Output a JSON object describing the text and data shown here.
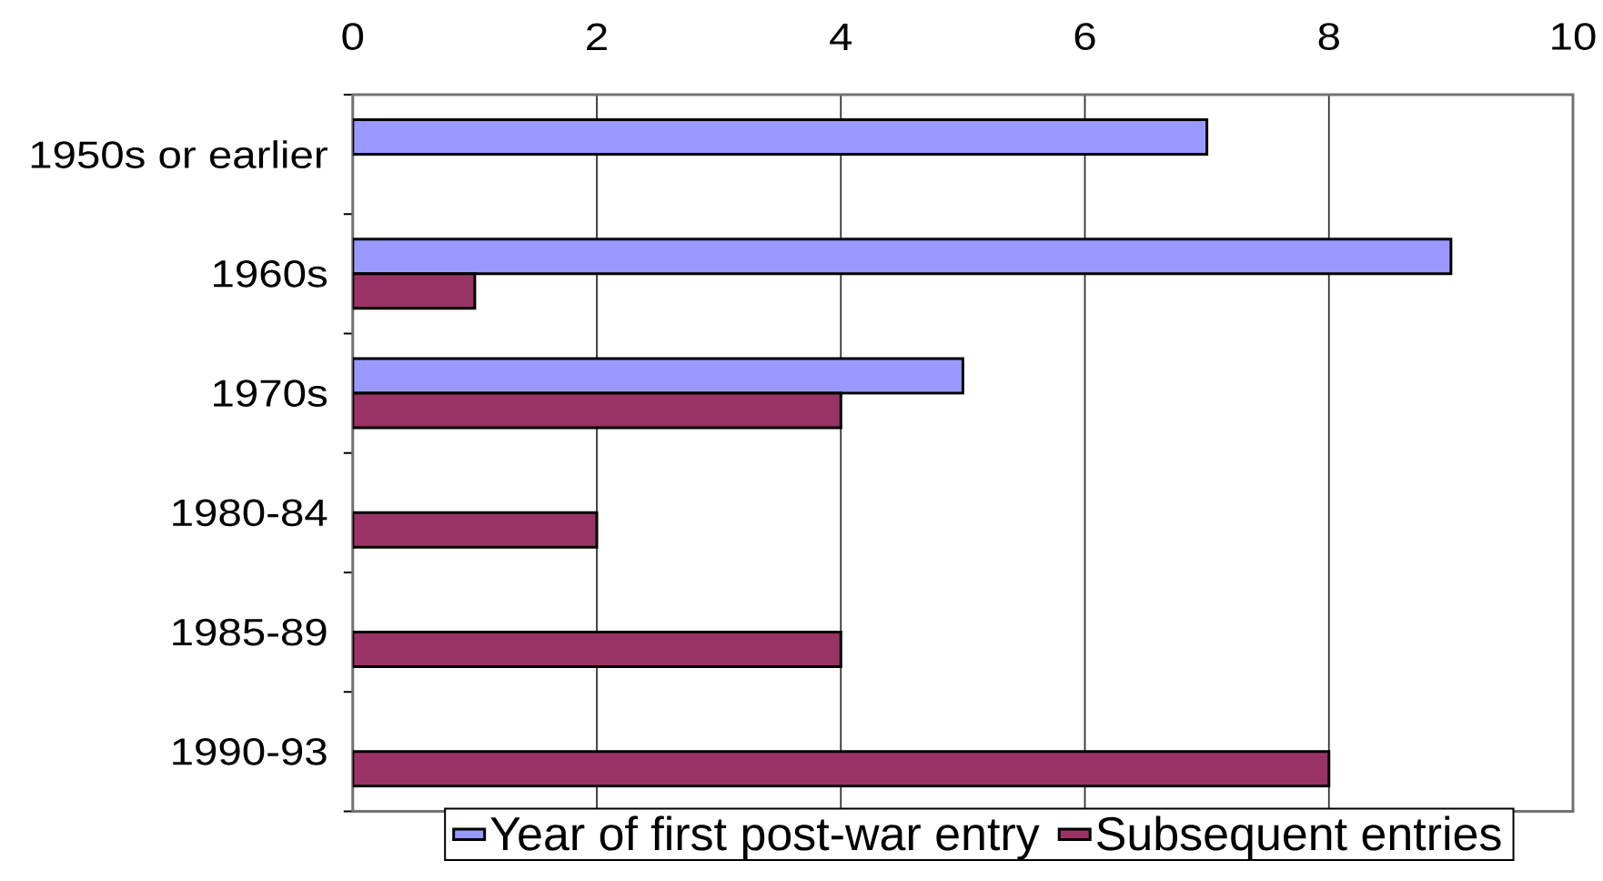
{
  "chart_data": {
    "type": "bar",
    "orientation": "horizontal",
    "categories": [
      "1950s or earlier",
      "1960s",
      "1970s",
      "1980-84",
      "1985-89",
      "1990-93"
    ],
    "series": [
      {
        "name": "Year of first post-war entry",
        "color": "#9999ff",
        "values": [
          7,
          9,
          5,
          null,
          null,
          null
        ]
      },
      {
        "name": "Subsequent entries",
        "color": "#993366",
        "values": [
          null,
          1,
          4,
          2,
          4,
          8
        ]
      }
    ],
    "xlim": [
      0,
      10
    ],
    "xticks": [
      0,
      2,
      4,
      6,
      8,
      10
    ],
    "grid": "x",
    "legend": "bottom"
  }
}
